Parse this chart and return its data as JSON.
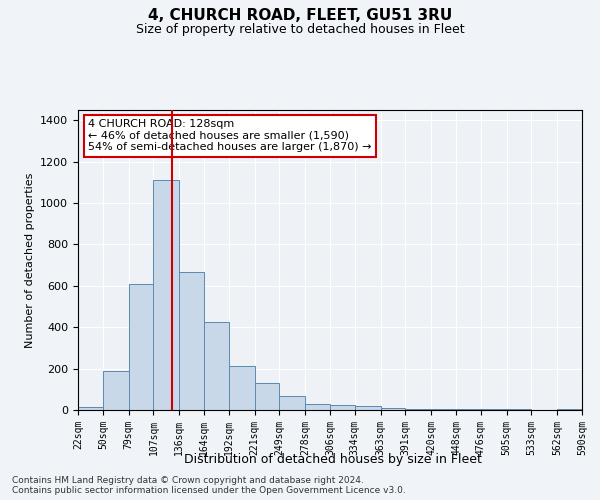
{
  "title": "4, CHURCH ROAD, FLEET, GU51 3RU",
  "subtitle": "Size of property relative to detached houses in Fleet",
  "xlabel": "Distribution of detached houses by size in Fleet",
  "ylabel": "Number of detached properties",
  "footer_line1": "Contains HM Land Registry data © Crown copyright and database right 2024.",
  "footer_line2": "Contains public sector information licensed under the Open Government Licence v3.0.",
  "annotation_title": "4 CHURCH ROAD: 128sqm",
  "annotation_line1": "← 46% of detached houses are smaller (1,590)",
  "annotation_line2": "54% of semi-detached houses are larger (1,870) →",
  "property_size": 128,
  "bin_edges": [
    22,
    50,
    79,
    107,
    136,
    164,
    192,
    221,
    249,
    278,
    306,
    334,
    363,
    391,
    420,
    448,
    476,
    505,
    533,
    562,
    590
  ],
  "bar_heights": [
    15,
    190,
    610,
    1110,
    665,
    425,
    215,
    130,
    70,
    30,
    25,
    20,
    10,
    5,
    5,
    3,
    3,
    3,
    2,
    3
  ],
  "bar_color": "#c8d8e8",
  "bar_edge_color": "#5a8ab0",
  "vline_color": "#cc0000",
  "vline_x": 128,
  "ylim": [
    0,
    1450
  ],
  "background_color": "#f0f4f8",
  "plot_bg_color": "#eef2f7",
  "grid_color": "#ffffff",
  "annotation_box_color": "#ffffff",
  "annotation_box_edge": "#cc0000"
}
